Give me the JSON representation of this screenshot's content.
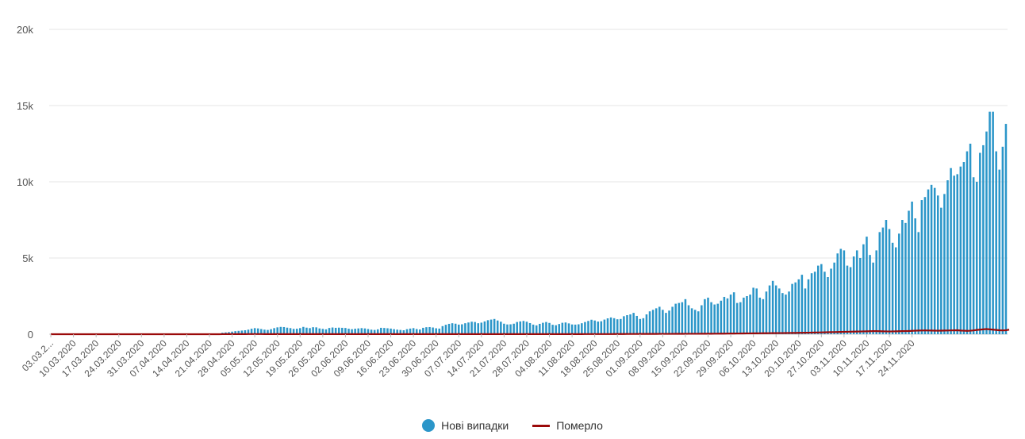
{
  "chart_data": {
    "type": "bar",
    "ylim": [
      0,
      20000
    ],
    "y_ticks": [
      0,
      5000,
      10000,
      15000,
      20000
    ],
    "y_tick_labels": [
      "0",
      "5k",
      "10k",
      "15k",
      "20k"
    ],
    "x_start": "03.03.2020",
    "x_tick_labels": [
      "03.03.2...",
      "10.03.2020",
      "17.03.2020",
      "24.03.2020",
      "31.03.2020",
      "07.04.2020",
      "14.04.2020",
      "21.04.2020",
      "28.04.2020",
      "05.05.2020",
      "12.05.2020",
      "19.05.2020",
      "26.05.2020",
      "02.06.2020",
      "09.06.2020",
      "16.06.2020",
      "23.06.2020",
      "30.06.2020",
      "07.07.2020",
      "14.07.2020",
      "21.07.2020",
      "28.07.2020",
      "04.08.2020",
      "11.08.2020",
      "18.08.2020",
      "25.08.2020",
      "01.09.2020",
      "08.09.2020",
      "15.09.2020",
      "22.09.2020",
      "29.09.2020",
      "06.10.2020",
      "13.10.2020",
      "20.10.2020",
      "27.10.2020",
      "03.11.2020",
      "10.11.2020",
      "17.11.2020",
      "24.11.2020"
    ],
    "grid": true,
    "legend_position": "bottom-center",
    "series": [
      {
        "name": "Нові випадки",
        "type": "bar",
        "color": "#2b96c9",
        "values": [
          1,
          0,
          0,
          0,
          0,
          0,
          0,
          0,
          0,
          1,
          0,
          0,
          0,
          0,
          0,
          0,
          0,
          0,
          0,
          0,
          0,
          0,
          0,
          0,
          0,
          0,
          0,
          0,
          0,
          0,
          0,
          0,
          0,
          0,
          0,
          0,
          0,
          0,
          0,
          0,
          0,
          0,
          0,
          0,
          0,
          0,
          0,
          0,
          0,
          0,
          0,
          0,
          0,
          100,
          120,
          140,
          170,
          200,
          220,
          240,
          260,
          300,
          360,
          400,
          380,
          340,
          300,
          280,
          330,
          400,
          450,
          480,
          470,
          430,
          400,
          350,
          360,
          400,
          480,
          430,
          400,
          460,
          450,
          380,
          350,
          320,
          410,
          440,
          420,
          430,
          420,
          410,
          360,
          330,
          360,
          380,
          400,
          380,
          340,
          300,
          280,
          320,
          420,
          410,
          390,
          370,
          330,
          300,
          280,
          260,
          330,
          370,
          400,
          340,
          310,
          420,
          460,
          470,
          440,
          390,
          370,
          530,
          620,
          680,
          720,
          690,
          630,
          650,
          720,
          770,
          820,
          800,
          720,
          760,
          840,
          920,
          960,
          1000,
          900,
          820,
          690,
          640,
          650,
          690,
          800,
          840,
          870,
          820,
          730,
          630,
          580,
          680,
          750,
          800,
          740,
          620,
          590,
          670,
          750,
          770,
          710,
          640,
          630,
          650,
          720,
          800,
          870,
          950,
          900,
          830,
          850,
          960,
          1040,
          1100,
          1050,
          980,
          1000,
          1180,
          1250,
          1300,
          1400,
          1200,
          1000,
          1050,
          1300,
          1500,
          1600,
          1700,
          1800,
          1600,
          1400,
          1550,
          1800,
          2000,
          2050,
          2100,
          2300,
          1900,
          1700,
          1600,
          1500,
          1900,
          2300,
          2400,
          2100,
          1950,
          2000,
          2200,
          2450,
          2350,
          2600,
          2750,
          2050,
          2100,
          2400,
          2500,
          2600,
          3050,
          3000,
          2400,
          2300,
          2800,
          3200,
          3500,
          3200,
          3000,
          2700,
          2600,
          2800,
          3300,
          3400,
          3600,
          3900,
          3000,
          3600,
          4000,
          4100,
          4500,
          4600,
          4100,
          3750,
          4300,
          4700,
          5300,
          5600,
          5500,
          4500,
          4400,
          5100,
          5500,
          5000,
          5900,
          6400,
          5200,
          4700,
          5500,
          6700,
          7000,
          7500,
          6900,
          6000,
          5700,
          6600,
          7500,
          7300,
          8100,
          8700,
          7600,
          6700,
          8800,
          9000,
          9500,
          9800,
          9600,
          9100,
          8300,
          9200,
          10100,
          10900,
          10400,
          10500,
          11000,
          11300,
          12000,
          12500,
          10300,
          10000,
          11900,
          12400,
          13300,
          14600,
          14600,
          12000,
          10800,
          12300,
          13800
        ]
      },
      {
        "name": "Померло",
        "type": "line",
        "color": "#9b0a0a",
        "values": [
          0,
          0,
          0,
          0,
          0,
          0,
          0,
          0,
          0,
          0,
          0,
          0,
          0,
          0,
          0,
          0,
          0,
          0,
          0,
          0,
          0,
          0,
          0,
          0,
          0,
          0,
          0,
          0,
          0,
          0,
          0,
          0,
          0,
          0,
          0,
          0,
          0,
          0,
          0,
          0,
          0,
          0,
          0,
          0,
          0,
          0,
          0,
          0,
          0,
          0,
          0,
          0,
          0,
          3,
          5,
          6,
          6,
          7,
          7,
          8,
          8,
          9,
          9,
          9,
          9,
          9,
          8,
          8,
          8,
          8,
          8,
          8,
          8,
          8,
          8,
          7,
          7,
          7,
          7,
          7,
          7,
          7,
          7,
          7,
          6,
          6,
          6,
          6,
          6,
          6,
          6,
          6,
          6,
          6,
          6,
          6,
          6,
          6,
          6,
          6,
          6,
          6,
          6,
          6,
          6,
          6,
          6,
          6,
          6,
          6,
          6,
          6,
          6,
          6,
          6,
          6,
          6,
          6,
          6,
          6,
          6,
          6,
          6,
          7,
          7,
          7,
          7,
          7,
          7,
          7,
          7,
          7,
          7,
          7,
          7,
          7,
          7,
          7,
          7,
          7,
          7,
          7,
          7,
          7,
          7,
          7,
          7,
          7,
          7,
          7,
          7,
          7,
          7,
          7,
          7,
          8,
          8,
          8,
          8,
          8,
          8,
          8,
          8,
          8,
          8,
          9,
          9,
          9,
          9,
          9,
          9,
          10,
          10,
          11,
          12,
          12,
          13,
          14,
          15,
          15,
          16,
          17,
          18,
          18,
          19,
          20,
          20,
          21,
          22,
          22,
          23,
          24,
          24,
          25,
          26,
          26,
          27,
          28,
          28,
          29,
          30,
          31,
          32,
          33,
          34,
          35,
          36,
          38,
          40,
          42,
          44,
          46,
          48,
          50,
          52,
          54,
          56,
          58,
          60,
          62,
          64,
          66,
          68,
          70,
          72,
          74,
          76,
          78,
          80,
          83,
          86,
          90,
          94,
          98,
          102,
          106,
          110,
          115,
          120,
          125,
          130,
          135,
          140,
          145,
          150,
          155,
          160,
          165,
          170,
          175,
          180,
          185,
          190,
          195,
          200,
          200,
          195,
          190,
          185,
          180,
          185,
          190,
          195,
          200,
          205,
          210,
          220,
          230,
          240,
          245,
          250,
          245,
          240,
          235,
          230,
          235,
          240,
          245,
          250,
          255,
          260,
          240,
          230,
          220,
          230,
          250,
          280,
          300,
          320,
          340,
          320,
          300,
          280,
          260,
          250,
          260,
          300
        ]
      }
    ]
  }
}
